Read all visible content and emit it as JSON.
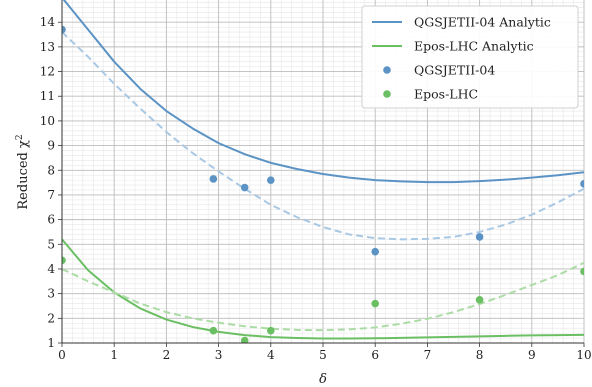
{
  "chart_data": {
    "type": "line",
    "xlabel": "δ",
    "ylabel_main": "Reduced χ",
    "ylabel_sup": "2",
    "xlim": [
      0,
      10
    ],
    "ylim": [
      1,
      14.9
    ],
    "xticks": [
      "0",
      "1",
      "2",
      "3",
      "4",
      "5",
      "6",
      "7",
      "8",
      "9",
      "10"
    ],
    "yticks": [
      "1",
      "2",
      "3",
      "4",
      "5",
      "6",
      "7",
      "8",
      "9",
      "10",
      "11",
      "12",
      "13",
      "14"
    ],
    "grid": true,
    "minor_grid": true,
    "legend_position": "top-right",
    "series": [
      {
        "name": "QGSJETII-04 Analytic",
        "kind": "line",
        "style": "solid",
        "color": "#5b93c5",
        "x": [
          0,
          0.5,
          1,
          1.5,
          2,
          2.5,
          3,
          3.5,
          4,
          4.5,
          5,
          5.5,
          6,
          6.5,
          7,
          7.5,
          8,
          8.5,
          9,
          9.5,
          10
        ],
        "y": [
          15.0,
          13.7,
          12.4,
          11.3,
          10.4,
          9.7,
          9.1,
          8.65,
          8.3,
          8.05,
          7.85,
          7.7,
          7.6,
          7.55,
          7.52,
          7.52,
          7.56,
          7.62,
          7.7,
          7.8,
          7.92
        ]
      },
      {
        "name": "Epos-LHC Analytic",
        "kind": "line",
        "style": "solid",
        "color": "#6bbf63",
        "x": [
          0,
          0.5,
          1,
          1.5,
          2,
          2.5,
          3,
          3.5,
          4,
          4.5,
          5,
          5.5,
          6,
          6.5,
          7,
          7.5,
          8,
          8.5,
          9,
          9.5,
          10
        ],
        "y": [
          5.2,
          3.95,
          3.05,
          2.4,
          1.95,
          1.65,
          1.45,
          1.32,
          1.24,
          1.2,
          1.18,
          1.18,
          1.19,
          1.21,
          1.23,
          1.25,
          1.27,
          1.29,
          1.31,
          1.32,
          1.33
        ]
      },
      {
        "name": "",
        "kind": "line",
        "style": "dashed",
        "color": "#a9c8e4",
        "x": [
          0,
          0.5,
          1,
          1.5,
          2,
          2.5,
          3,
          3.5,
          4,
          4.5,
          5,
          5.5,
          6,
          6.5,
          7,
          7.5,
          8,
          8.5,
          9,
          9.5,
          10
        ],
        "y": [
          13.6,
          12.6,
          11.5,
          10.5,
          9.55,
          8.7,
          7.95,
          7.25,
          6.6,
          6.1,
          5.7,
          5.4,
          5.25,
          5.2,
          5.22,
          5.3,
          5.5,
          5.8,
          6.2,
          6.7,
          7.25
        ]
      },
      {
        "name": "",
        "kind": "line",
        "style": "dashed",
        "color": "#acdca5",
        "x": [
          0,
          0.5,
          1,
          1.5,
          2,
          2.5,
          3,
          3.5,
          4,
          4.5,
          5,
          5.5,
          6,
          6.5,
          7,
          7.5,
          8,
          8.5,
          9,
          9.5,
          10
        ],
        "y": [
          4.0,
          3.5,
          3.05,
          2.6,
          2.25,
          2.0,
          1.82,
          1.68,
          1.58,
          1.53,
          1.52,
          1.55,
          1.63,
          1.78,
          1.98,
          2.25,
          2.58,
          2.95,
          3.35,
          3.75,
          4.25
        ]
      },
      {
        "name": "QGSJETII-04",
        "kind": "scatter",
        "color": "#5b93c5",
        "x": [
          0,
          2.9,
          3.5,
          4,
          6,
          8,
          10
        ],
        "y": [
          13.7,
          7.65,
          7.3,
          7.6,
          4.7,
          5.3,
          7.45
        ]
      },
      {
        "name": "Epos-LHC",
        "kind": "scatter",
        "color": "#6bbf63",
        "x": [
          0,
          2.9,
          3.5,
          4,
          6,
          8,
          10
        ],
        "y": [
          4.35,
          1.5,
          1.1,
          1.5,
          2.6,
          2.75,
          3.9
        ]
      }
    ],
    "legend": [
      {
        "label": "QGSJETII-04 Analytic",
        "marker": "line",
        "color": "#5b93c5"
      },
      {
        "label": "Epos-LHC Analytic",
        "marker": "line",
        "color": "#6bbf63"
      },
      {
        "label": "QGSJETII-04",
        "marker": "dot",
        "color": "#5b93c5"
      },
      {
        "label": "Epos-LHC",
        "marker": "dot",
        "color": "#6bbf63"
      }
    ]
  }
}
